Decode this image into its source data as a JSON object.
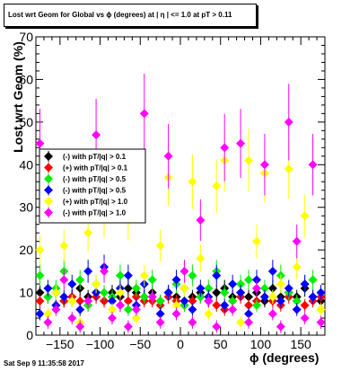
{
  "chart_data": {
    "type": "scatter",
    "title": "Lost wrt Geom for Global vs ϕ (degrees) at | η | <= 1.0 at pT > 0.11",
    "xlabel": "ϕ (degrees)",
    "ylabel": "Lost wrt Geom (%)",
    "xlim": [
      -180,
      180
    ],
    "ylim": [
      0,
      70
    ],
    "xticks": [
      -150,
      -100,
      -50,
      0,
      50,
      100,
      150
    ],
    "yticks": [
      0,
      10,
      20,
      30,
      40,
      50,
      60,
      70
    ],
    "grid": false,
    "legend": "inside-left",
    "series": [
      {
        "name": "(-) with pT/|q| > 0.1",
        "color": "#000000",
        "x": [
          -175,
          -165,
          -155,
          -145,
          -135,
          -125,
          -115,
          -105,
          -95,
          -85,
          -75,
          -65,
          -55,
          -45,
          -35,
          -25,
          -15,
          -5,
          5,
          15,
          25,
          35,
          45,
          55,
          65,
          75,
          85,
          95,
          105,
          115,
          125,
          135,
          145,
          155,
          165,
          175
        ],
        "y": [
          10,
          9,
          10,
          8,
          9,
          11,
          9,
          10,
          8,
          10,
          9,
          11,
          10,
          9,
          10,
          8,
          10,
          9,
          11,
          9,
          10,
          8,
          10,
          11,
          9,
          10,
          9,
          10,
          8,
          11,
          9,
          10,
          9,
          11,
          9,
          8
        ]
      },
      {
        "name": "(+) with pT/|q| > 0.1",
        "color": "#ff0000",
        "x": [
          -175,
          -165,
          -155,
          -145,
          -135,
          -125,
          -115,
          -105,
          -95,
          -85,
          -75,
          -65,
          -55,
          -45,
          -35,
          -25,
          -15,
          -5,
          5,
          15,
          25,
          35,
          45,
          55,
          65,
          75,
          85,
          95,
          105,
          115,
          125,
          135,
          145,
          155,
          165,
          175
        ],
        "y": [
          8,
          9,
          7,
          8,
          9,
          8,
          7,
          9,
          8,
          9,
          7,
          8,
          9,
          8,
          8,
          7,
          9,
          8,
          7,
          8,
          9,
          8,
          7,
          6,
          8,
          9,
          7,
          8,
          9,
          8,
          7,
          9,
          8,
          7,
          8,
          9
        ]
      },
      {
        "name": "(-) with pT/|q| > 0.5",
        "color": "#00ee00",
        "x": [
          -175,
          -165,
          -155,
          -145,
          -135,
          -125,
          -115,
          -105,
          -95,
          -85,
          -75,
          -65,
          -55,
          -45,
          -35,
          -25,
          -15,
          -5,
          5,
          15,
          25,
          35,
          45,
          55,
          65,
          75,
          85,
          95,
          105,
          115,
          125,
          135,
          145,
          155,
          165,
          175
        ],
        "y": [
          14,
          9,
          11,
          15,
          8,
          13,
          7,
          12,
          10,
          9,
          14,
          6,
          11,
          9,
          13,
          8,
          10,
          12,
          7,
          14,
          9,
          11,
          15,
          10,
          8,
          12,
          13,
          7,
          11,
          9,
          14,
          10,
          8,
          12,
          13,
          6
        ]
      },
      {
        "name": "(-) with pT/|q| > 0.5",
        "color": "#0000ff",
        "x": [
          -175,
          -165,
          -155,
          -145,
          -135,
          -125,
          -115,
          -105,
          -95,
          -85,
          -75,
          -65,
          -55,
          -45,
          -35,
          -25,
          -15,
          -5,
          5,
          15,
          25,
          35,
          45,
          55,
          65,
          75,
          85,
          95,
          105,
          115,
          125,
          135,
          145,
          155,
          165,
          175
        ],
        "y": [
          5,
          11,
          7,
          9,
          12,
          6,
          15,
          10,
          16,
          8,
          11,
          14,
          7,
          12,
          9,
          5,
          10,
          13,
          8,
          6,
          11,
          9,
          14,
          7,
          12,
          10,
          5,
          13,
          9,
          15,
          8,
          11,
          6,
          12,
          9,
          10
        ]
      },
      {
        "name": "(+) with pT/|q| > 1.0",
        "color": "#ffff00",
        "x": [
          -175,
          -165,
          -155,
          -145,
          -135,
          -125,
          -115,
          -105,
          -95,
          -85,
          -75,
          -65,
          -55,
          -45,
          -35,
          -25,
          -15,
          -5,
          5,
          15,
          25,
          35,
          45,
          55,
          65,
          75,
          85,
          95,
          105,
          115,
          125,
          135,
          145,
          155,
          165,
          175
        ],
        "y": [
          20,
          5,
          10,
          21,
          8,
          3,
          24,
          12,
          28,
          6,
          10,
          27,
          4,
          14,
          9,
          21,
          37,
          7,
          11,
          36,
          18,
          5,
          35,
          41,
          6,
          3,
          41,
          22,
          38,
          9,
          12,
          39,
          16,
          28,
          40,
          6
        ]
      },
      {
        "name": "(-) with pT/|q| > 1.0",
        "color": "#ff00ff",
        "x": [
          -175,
          -165,
          -155,
          -145,
          -135,
          -125,
          -115,
          -105,
          -95,
          -85,
          -75,
          -65,
          -55,
          -45,
          -35,
          -25,
          -15,
          -5,
          5,
          15,
          25,
          35,
          45,
          55,
          65,
          75,
          85,
          95,
          105,
          115,
          125,
          135,
          145,
          155,
          165,
          175
        ],
        "y": [
          45,
          3,
          6,
          13,
          4,
          2,
          8,
          47,
          15,
          4,
          7,
          2,
          6,
          52,
          9,
          3,
          42,
          5,
          15,
          3,
          27,
          8,
          2,
          44,
          6,
          45,
          3,
          11,
          40,
          5,
          2,
          50,
          22,
          4,
          40,
          3
        ]
      }
    ]
  }
}
